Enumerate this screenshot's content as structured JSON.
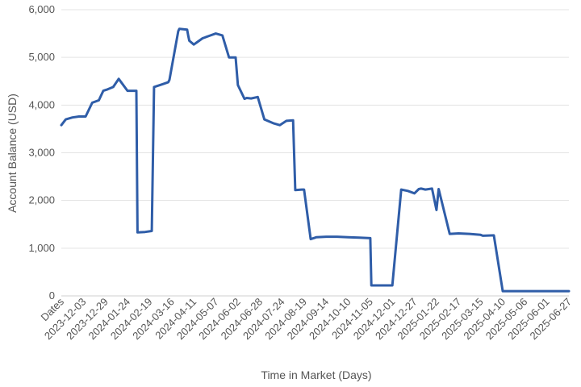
{
  "chart_data": {
    "type": "line",
    "xlabel": "Time in Market (Days)",
    "ylabel": "Account Balance (USD)",
    "ylim": [
      0,
      6000
    ],
    "yticks": [
      0,
      1000,
      2000,
      3000,
      4000,
      5000,
      6000
    ],
    "ytick_labels": [
      "0",
      "1,000",
      "2,000",
      "3,000",
      "4,000",
      "5,000",
      "6,000"
    ],
    "categories": [
      "Dates",
      "2023-12-03",
      "2023-12-29",
      "2024-01-24",
      "2024-02-19",
      "2024-03-16",
      "2024-04-11",
      "2024-05-07",
      "2024-06-02",
      "2024-06-28",
      "2024-07-24",
      "2024-08-19",
      "2024-09-14",
      "2024-10-10",
      "2024-11-05",
      "2024-12-01",
      "2024-12-27",
      "2025-01-22",
      "2025-02-17",
      "2025-03-15",
      "2025-04-10",
      "2025-05-06",
      "2025-06-01",
      "2025-06-27"
    ],
    "grid": true,
    "legend": "none",
    "line_color": "#2f5da8",
    "series": [
      {
        "x": [
          0,
          0.2,
          0.5,
          0.8,
          1.1,
          1.4,
          1.7,
          1.9,
          2.1,
          2.35,
          2.6,
          3.0,
          3.4,
          3.45,
          3.8,
          4.1,
          4.2,
          4.6,
          4.85,
          4.9,
          5.3,
          5.35,
          5.7,
          5.75,
          5.8,
          6.0,
          6.1,
          6.4,
          6.7,
          7.0,
          7.3,
          7.6,
          7.9,
          8.0,
          8.3,
          8.4,
          8.6,
          8.9,
          9.2,
          9.3,
          9.6,
          9.9,
          10.2,
          10.5,
          10.6,
          10.9,
          11.0,
          11.3,
          11.5,
          11.55,
          12.0,
          12.5,
          13.0,
          13.5,
          14.0,
          14.05,
          14.3,
          14.6,
          14.7,
          15.0,
          15.4,
          15.7,
          16.0,
          16.2,
          16.3,
          16.5,
          16.8,
          17.0,
          17.1,
          17.6,
          18.0,
          18.5,
          19.0,
          19.1,
          19.6,
          20.0,
          21.0,
          22.0,
          23.0
        ],
        "y": [
          3580,
          3700,
          3740,
          3760,
          3760,
          4050,
          4100,
          4300,
          4330,
          4380,
          4550,
          4300,
          4300,
          1330,
          1340,
          1360,
          4380,
          4440,
          4480,
          4530,
          5550,
          5600,
          5580,
          5450,
          5350,
          5270,
          5300,
          5400,
          5450,
          5500,
          5460,
          5000,
          5000,
          4420,
          4130,
          4150,
          4140,
          4170,
          3700,
          3680,
          3620,
          3580,
          3670,
          3680,
          2220,
          2230,
          2230,
          1190,
          1220,
          1230,
          1240,
          1240,
          1230,
          1220,
          1210,
          220,
          220,
          220,
          220,
          220,
          2230,
          2200,
          2150,
          2240,
          2250,
          2230,
          2250,
          1800,
          2240,
          1300,
          1310,
          1300,
          1280,
          1260,
          1270,
          100,
          100,
          100,
          100
        ]
      }
    ]
  }
}
